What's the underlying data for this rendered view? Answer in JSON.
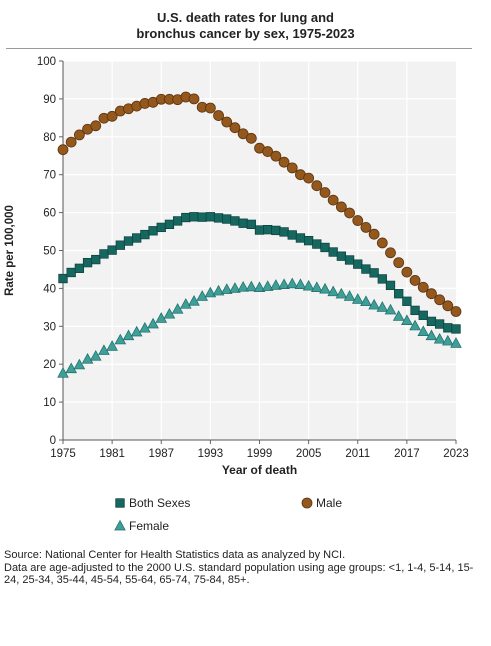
{
  "title_line1": "U.S. death rates for lung and",
  "title_line2": "bronchus cancer by sex, 1975-2023",
  "source_line": "Source: National Center for Health Statistics data as analyzed by NCI.",
  "note_line": "Data are age-adjusted to the 2000 U.S. standard population using age groups: <1, 1-4, 5-14, 15-24, 25-34, 35-44, 45-54, 55-64, 65-74, 75-84, 85+.",
  "colors": {
    "both": "#16675f",
    "male": "#94571c",
    "female": "#3d9f98",
    "plot_bg": "#f2f2f2",
    "grid": "#ffffff"
  },
  "chart_data": {
    "type": "line",
    "title": "U.S. death rates for lung and bronchus cancer by sex, 1975-2023",
    "xlabel": "Year of death",
    "ylabel": "Rate per 100,000",
    "xlim": [
      1975,
      2023
    ],
    "ylim": [
      0,
      100
    ],
    "x_ticks": [
      "1975",
      "1981",
      "1987",
      "1993",
      "1999",
      "2005",
      "2011",
      "2017",
      "2023"
    ],
    "y_ticks": [
      "0",
      "10",
      "20",
      "30",
      "40",
      "50",
      "60",
      "70",
      "80",
      "90",
      "100"
    ],
    "grid": true,
    "legend": "bottom",
    "x": [
      1975,
      1976,
      1977,
      1978,
      1979,
      1980,
      1981,
      1982,
      1983,
      1984,
      1985,
      1986,
      1987,
      1988,
      1989,
      1990,
      1991,
      1992,
      1993,
      1994,
      1995,
      1996,
      1997,
      1998,
      1999,
      2000,
      2001,
      2002,
      2003,
      2004,
      2005,
      2006,
      2007,
      2008,
      2009,
      2010,
      2011,
      2012,
      2013,
      2014,
      2015,
      2016,
      2017,
      2018,
      2019,
      2020,
      2021,
      2022,
      2023
    ],
    "series": [
      {
        "name": "Both Sexes",
        "marker": "square",
        "values": [
          42.6,
          44.2,
          45.3,
          46.8,
          47.6,
          49.1,
          50.1,
          51.4,
          52.5,
          53.3,
          54.2,
          55.2,
          56.1,
          56.9,
          57.8,
          58.7,
          58.9,
          58.8,
          58.9,
          58.6,
          58.3,
          57.8,
          57.2,
          56.9,
          55.4,
          55.5,
          55.3,
          54.9,
          54.1,
          53.3,
          52.6,
          51.7,
          50.8,
          49.6,
          48.5,
          47.5,
          46.4,
          45.1,
          44.1,
          42.5,
          40.8,
          38.6,
          36.6,
          34.2,
          32.9,
          31.3,
          30.6,
          29.6,
          29.3
        ]
      },
      {
        "name": "Male",
        "marker": "circle",
        "values": [
          76.6,
          78.6,
          80.5,
          82.0,
          82.9,
          84.9,
          85.4,
          86.8,
          87.4,
          88.1,
          88.8,
          89.1,
          89.9,
          89.9,
          89.8,
          90.5,
          90.0,
          87.8,
          87.6,
          85.6,
          83.9,
          82.4,
          80.8,
          79.6,
          77.0,
          76.1,
          74.9,
          73.3,
          71.8,
          70.0,
          69.1,
          67.1,
          65.3,
          63.3,
          61.5,
          59.9,
          57.9,
          56.1,
          54.3,
          52.0,
          49.4,
          46.8,
          44.3,
          42.1,
          40.3,
          38.6,
          37.0,
          35.4,
          33.9
        ]
      },
      {
        "name": "Female",
        "marker": "triangle",
        "values": [
          17.6,
          18.8,
          19.8,
          21.3,
          22.1,
          23.6,
          24.7,
          26.4,
          27.5,
          28.5,
          29.5,
          30.6,
          32.1,
          33.2,
          34.5,
          35.8,
          36.6,
          37.9,
          38.8,
          39.3,
          39.7,
          40.0,
          40.3,
          40.4,
          40.2,
          40.5,
          40.8,
          41.0,
          41.2,
          41.0,
          40.6,
          40.2,
          39.8,
          39.1,
          38.5,
          37.9,
          37.1,
          36.5,
          35.6,
          35.0,
          34.3,
          32.6,
          31.5,
          30.1,
          28.6,
          27.5,
          26.6,
          26.1,
          25.5
        ]
      }
    ]
  }
}
